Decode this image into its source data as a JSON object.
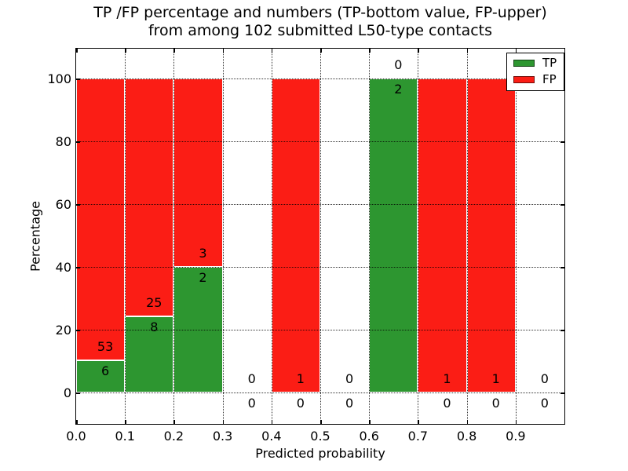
{
  "chart_data": {
    "type": "bar",
    "stacked": true,
    "title": "TP /FP percentage and numbers (TP-bottom value, FP-upper)\nfrom among 102 submitted L50-type contacts",
    "title_line1": "TP /FP percentage and numbers (TP-bottom value, FP-upper)",
    "title_line2": "from among 102 submitted L50-type contacts",
    "xlabel": "Predicted probability",
    "ylabel": "Percentage",
    "xlim": [
      0.0,
      1.0
    ],
    "ylim": [
      -10,
      109.5
    ],
    "xticks": [
      "0.0",
      "0.1",
      "0.2",
      "0.3",
      "0.4",
      "0.5",
      "0.6",
      "0.7",
      "0.8",
      "0.9"
    ],
    "yticks": [
      "0",
      "20",
      "40",
      "60",
      "80",
      "100"
    ],
    "grid": "dotted black, drawn above bars",
    "total_contacts": 102,
    "colors": {
      "tp": "#2d9630",
      "fp": "#fb1d15",
      "bar_edge": "#ffffff",
      "text": "#000000"
    },
    "legend": {
      "position": "upper right",
      "entries": [
        {
          "label": "TP",
          "color": "#2d9630"
        },
        {
          "label": "FP",
          "color": "#fb1d15"
        }
      ]
    },
    "bins": [
      {
        "x_start": 0.0,
        "x_end": 0.1,
        "tp_count": 6,
        "fp_count": 53,
        "tp_pct": 10.2,
        "fp_pct": 89.8
      },
      {
        "x_start": 0.1,
        "x_end": 0.2,
        "tp_count": 8,
        "fp_count": 25,
        "tp_pct": 24.2,
        "fp_pct": 75.8
      },
      {
        "x_start": 0.2,
        "x_end": 0.3,
        "tp_count": 2,
        "fp_count": 3,
        "tp_pct": 40.0,
        "fp_pct": 60.0
      },
      {
        "x_start": 0.3,
        "x_end": 0.4,
        "tp_count": 0,
        "fp_count": 0,
        "tp_pct": 0,
        "fp_pct": 0
      },
      {
        "x_start": 0.4,
        "x_end": 0.5,
        "tp_count": 0,
        "fp_count": 1,
        "tp_pct": 0,
        "fp_pct": 100
      },
      {
        "x_start": 0.5,
        "x_end": 0.6,
        "tp_count": 0,
        "fp_count": 0,
        "tp_pct": 0,
        "fp_pct": 0
      },
      {
        "x_start": 0.6,
        "x_end": 0.7,
        "tp_count": 2,
        "fp_count": 0,
        "tp_pct": 100,
        "fp_pct": 0
      },
      {
        "x_start": 0.7,
        "x_end": 0.8,
        "tp_count": 0,
        "fp_count": 1,
        "tp_pct": 0,
        "fp_pct": 100
      },
      {
        "x_start": 0.8,
        "x_end": 0.9,
        "tp_count": 0,
        "fp_count": 1,
        "tp_pct": 0,
        "fp_pct": 100
      },
      {
        "x_start": 0.9,
        "x_end": 1.0,
        "tp_count": 0,
        "fp_count": 0,
        "tp_pct": 0,
        "fp_pct": 0
      }
    ]
  }
}
